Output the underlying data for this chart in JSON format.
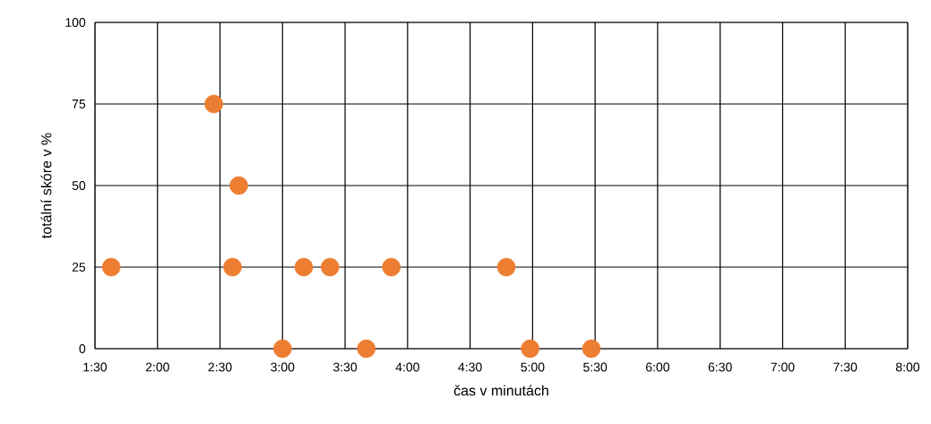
{
  "chart_data": {
    "type": "scatter",
    "xlabel": "čas v minutách",
    "ylabel": "totální skóre v %",
    "x": [
      1.63,
      2.45,
      2.65,
      2.6,
      3.0,
      3.17,
      3.38,
      3.67,
      3.87,
      4.79,
      4.98,
      5.47
    ],
    "values": [
      25,
      75,
      50,
      25,
      0,
      25,
      25,
      0,
      25,
      25,
      0,
      0
    ],
    "color": "#ed7d31",
    "marker": "circle",
    "grid": true,
    "legend": false,
    "xlim": [
      1.5,
      8.0
    ],
    "xticks": [
      {
        "value": 1.5,
        "label": "1:30"
      },
      {
        "value": 2.0,
        "label": "2:00"
      },
      {
        "value": 2.5,
        "label": "2:30"
      },
      {
        "value": 3.0,
        "label": "3:00"
      },
      {
        "value": 3.5,
        "label": "3:30"
      },
      {
        "value": 4.0,
        "label": "4:00"
      },
      {
        "value": 4.5,
        "label": "4:30"
      },
      {
        "value": 5.0,
        "label": "5:00"
      },
      {
        "value": 5.5,
        "label": "5:30"
      },
      {
        "value": 6.0,
        "label": "6:00"
      },
      {
        "value": 6.5,
        "label": "6:30"
      },
      {
        "value": 7.0,
        "label": "7:00"
      },
      {
        "value": 7.5,
        "label": "7:30"
      },
      {
        "value": 8.0,
        "label": "8:00"
      }
    ],
    "ylim": [
      0,
      100
    ],
    "yticks": [
      0,
      25,
      50,
      75,
      100
    ]
  }
}
